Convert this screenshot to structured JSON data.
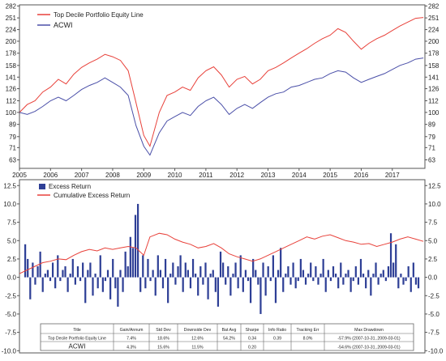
{
  "chart_data": [
    {
      "type": "line",
      "scale": "log",
      "ylim": [
        58,
        285
      ],
      "xlim": [
        2005.0,
        2018.05
      ],
      "grid": false,
      "legend_position": "top-left",
      "y_ticks": [
        "63",
        "71",
        "79",
        "89",
        "100",
        "112",
        "126",
        "141",
        "158",
        "178",
        "200",
        "224",
        "251",
        "282"
      ],
      "x_ticks": [
        "2005",
        "2006",
        "2007",
        "2008",
        "2009",
        "2010",
        "2011",
        "2012",
        "2013",
        "2014",
        "2015",
        "2016",
        "2017"
      ],
      "series": [
        {
          "name": "Top Decile Portfolio Equity Line",
          "color": "#e8413a",
          "points": [
            [
              2005.0,
              100
            ],
            [
              2005.25,
              108
            ],
            [
              2005.5,
              112
            ],
            [
              2005.75,
              122
            ],
            [
              2006.0,
              128
            ],
            [
              2006.25,
              138
            ],
            [
              2006.5,
              132
            ],
            [
              2006.75,
              145
            ],
            [
              2007.0,
              155
            ],
            [
              2007.25,
              162
            ],
            [
              2007.5,
              168
            ],
            [
              2007.75,
              176
            ],
            [
              2008.0,
              172
            ],
            [
              2008.25,
              166
            ],
            [
              2008.5,
              150
            ],
            [
              2008.75,
              110
            ],
            [
              2009.0,
              80
            ],
            [
              2009.2,
              72
            ],
            [
              2009.5,
              100
            ],
            [
              2009.75,
              118
            ],
            [
              2010.0,
              122
            ],
            [
              2010.25,
              128
            ],
            [
              2010.5,
              124
            ],
            [
              2010.75,
              140
            ],
            [
              2011.0,
              150
            ],
            [
              2011.25,
              156
            ],
            [
              2011.5,
              144
            ],
            [
              2011.75,
              128
            ],
            [
              2012.0,
              138
            ],
            [
              2012.25,
              142
            ],
            [
              2012.5,
              132
            ],
            [
              2012.75,
              138
            ],
            [
              2013.0,
              150
            ],
            [
              2013.25,
              155
            ],
            [
              2013.5,
              162
            ],
            [
              2013.75,
              170
            ],
            [
              2014.0,
              178
            ],
            [
              2014.25,
              186
            ],
            [
              2014.5,
              196
            ],
            [
              2014.75,
              205
            ],
            [
              2015.0,
              212
            ],
            [
              2015.25,
              226
            ],
            [
              2015.5,
              218
            ],
            [
              2015.75,
              200
            ],
            [
              2016.0,
              185
            ],
            [
              2016.25,
              196
            ],
            [
              2016.5,
              205
            ],
            [
              2016.75,
              212
            ],
            [
              2017.0,
              222
            ],
            [
              2017.25,
              232
            ],
            [
              2017.5,
              241
            ],
            [
              2017.75,
              250
            ],
            [
              2018.0,
              252
            ]
          ]
        },
        {
          "name": "ACWI",
          "color": "#4a4fa8",
          "points": [
            [
              2005.0,
              100
            ],
            [
              2005.25,
              98
            ],
            [
              2005.5,
              101
            ],
            [
              2005.75,
              106
            ],
            [
              2006.0,
              112
            ],
            [
              2006.25,
              116
            ],
            [
              2006.5,
              112
            ],
            [
              2006.75,
              118
            ],
            [
              2007.0,
              125
            ],
            [
              2007.25,
              130
            ],
            [
              2007.5,
              134
            ],
            [
              2007.75,
              140
            ],
            [
              2008.0,
              134
            ],
            [
              2008.25,
              128
            ],
            [
              2008.5,
              118
            ],
            [
              2008.75,
              88
            ],
            [
              2009.0,
              72
            ],
            [
              2009.2,
              66
            ],
            [
              2009.5,
              82
            ],
            [
              2009.75,
              92
            ],
            [
              2010.0,
              96
            ],
            [
              2010.25,
              100
            ],
            [
              2010.5,
              97
            ],
            [
              2010.75,
              106
            ],
            [
              2011.0,
              112
            ],
            [
              2011.25,
              116
            ],
            [
              2011.5,
              108
            ],
            [
              2011.75,
              98
            ],
            [
              2012.0,
              104
            ],
            [
              2012.25,
              108
            ],
            [
              2012.5,
              104
            ],
            [
              2012.75,
              110
            ],
            [
              2013.0,
              116
            ],
            [
              2013.25,
              120
            ],
            [
              2013.5,
              122
            ],
            [
              2013.75,
              128
            ],
            [
              2014.0,
              130
            ],
            [
              2014.25,
              134
            ],
            [
              2014.5,
              138
            ],
            [
              2014.75,
              140
            ],
            [
              2015.0,
              146
            ],
            [
              2015.25,
              150
            ],
            [
              2015.5,
              148
            ],
            [
              2015.75,
              140
            ],
            [
              2016.0,
              134
            ],
            [
              2016.25,
              138
            ],
            [
              2016.5,
              142
            ],
            [
              2016.75,
              146
            ],
            [
              2017.0,
              152
            ],
            [
              2017.25,
              158
            ],
            [
              2017.5,
              162
            ],
            [
              2017.75,
              168
            ],
            [
              2018.0,
              170
            ]
          ]
        }
      ]
    },
    {
      "type": "bar",
      "ylim": [
        -10.3,
        13.3
      ],
      "xlim": [
        2005.0,
        2018.05
      ],
      "grid": false,
      "legend_position": "top-left",
      "y_ticks": [
        "12.5",
        "10.0",
        "7.5",
        "5.0",
        "2.5",
        "0.0",
        "-2.5",
        "-5.0",
        "-7.5",
        "-10.0"
      ],
      "series": [
        {
          "name": "Excess Return",
          "color": "#2e3f96",
          "values": [
            4.5,
            2.5,
            -3.0,
            2.0,
            -1.0,
            1.5,
            3.5,
            -2.0,
            0.5,
            1.0,
            -0.5,
            2.0,
            -1.5,
            3.0,
            -0.5,
            1.0,
            1.5,
            -2.0,
            0.5,
            2.5,
            -1.0,
            1.5,
            -0.5,
            2.0,
            -3.5,
            1.0,
            2.0,
            -2.5,
            0.5,
            -1.5,
            3.0,
            -2.0,
            -0.5,
            1.0,
            -3.0,
            2.5,
            -1.5,
            -4.0,
            1.0,
            -2.0,
            3.5,
            1.5,
            5.5,
            4.0,
            8.5,
            10.0,
            -2.0,
            3.0,
            -1.5,
            2.5,
            -0.5,
            1.0,
            -2.5,
            3.0,
            1.0,
            -1.5,
            2.5,
            -3.5,
            0.5,
            2.0,
            -1.0,
            1.5,
            3.0,
            -2.0,
            2.0,
            1.0,
            -1.5,
            2.5,
            0.5,
            -2.5,
            1.5,
            -1.0,
            2.0,
            -3.0,
            0.5,
            1.0,
            -2.0,
            -4.0,
            3.5,
            2.0,
            -1.0,
            1.5,
            -2.5,
            0.5,
            2.0,
            -1.5,
            3.0,
            -2.0,
            1.0,
            -0.5,
            -3.5,
            2.5,
            1.0,
            -1.0,
            -5.0,
            2.0,
            -2.5,
            1.5,
            -0.5,
            3.0,
            -3.5,
            1.0,
            4.0,
            -2.0,
            0.5,
            1.5,
            -1.0,
            2.0,
            -1.5,
            -0.5,
            2.5,
            1.0,
            -1.0,
            0.5,
            2.0,
            -0.5,
            1.5,
            -1.0,
            0.5,
            2.5,
            -2.0,
            1.0,
            -0.5,
            1.5,
            0.5,
            -1.5,
            2.0,
            -1.0,
            0.5,
            1.0,
            -2.0,
            -0.5,
            1.5,
            -1.0,
            2.5,
            0.5,
            -1.5,
            1.0,
            -2.5,
            0.5,
            2.0,
            -1.0,
            0.5,
            1.0,
            -0.5,
            1.5,
            6.0,
            2.0,
            4.5,
            -1.5,
            0.5,
            -1.0,
            -0.5,
            1.5,
            -2.0,
            2.0,
            -1.0,
            -1.5
          ]
        },
        {
          "name": "Cumulative Excess Return",
          "type": "line",
          "color": "#e8413a",
          "points": [
            [
              2005.0,
              0.5
            ],
            [
              2005.25,
              1.0
            ],
            [
              2005.5,
              1.5
            ],
            [
              2005.75,
              2.0
            ],
            [
              2006.0,
              2.2
            ],
            [
              2006.25,
              2.5
            ],
            [
              2006.5,
              2.4
            ],
            [
              2006.75,
              3.0
            ],
            [
              2007.0,
              3.5
            ],
            [
              2007.25,
              3.8
            ],
            [
              2007.5,
              3.6
            ],
            [
              2007.75,
              4.0
            ],
            [
              2008.0,
              3.8
            ],
            [
              2008.25,
              4.0
            ],
            [
              2008.5,
              4.2
            ],
            [
              2008.75,
              4.0
            ],
            [
              2009.0,
              3.0
            ],
            [
              2009.2,
              5.5
            ],
            [
              2009.5,
              6.0
            ],
            [
              2009.75,
              5.8
            ],
            [
              2010.0,
              5.2
            ],
            [
              2010.25,
              4.8
            ],
            [
              2010.5,
              4.5
            ],
            [
              2010.75,
              4.0
            ],
            [
              2011.0,
              4.2
            ],
            [
              2011.25,
              4.6
            ],
            [
              2011.5,
              4.0
            ],
            [
              2011.75,
              3.2
            ],
            [
              2012.0,
              2.8
            ],
            [
              2012.25,
              2.5
            ],
            [
              2012.5,
              2.2
            ],
            [
              2012.75,
              2.5
            ],
            [
              2013.0,
              3.0
            ],
            [
              2013.25,
              3.5
            ],
            [
              2013.5,
              4.0
            ],
            [
              2013.75,
              4.5
            ],
            [
              2014.0,
              5.0
            ],
            [
              2014.25,
              5.5
            ],
            [
              2014.5,
              5.2
            ],
            [
              2014.75,
              5.6
            ],
            [
              2015.0,
              5.8
            ],
            [
              2015.25,
              5.4
            ],
            [
              2015.5,
              5.0
            ],
            [
              2015.75,
              4.8
            ],
            [
              2016.0,
              4.5
            ],
            [
              2016.25,
              4.6
            ],
            [
              2016.5,
              4.2
            ],
            [
              2016.75,
              4.5
            ],
            [
              2017.0,
              4.8
            ],
            [
              2017.25,
              5.2
            ],
            [
              2017.5,
              5.5
            ],
            [
              2017.75,
              5.2
            ],
            [
              2018.0,
              4.9
            ]
          ]
        }
      ]
    }
  ],
  "stats_table": {
    "headers": [
      "Title",
      "Gain/Annum",
      "Std Dev",
      "Downside Dev",
      "Bat Avg",
      "Sharpe",
      "Info Ratio",
      "Tracking Err",
      "Max Drawdown"
    ],
    "rows": [
      [
        "Top Decile Portfolio Equity Line",
        "7.4%",
        "18.6%",
        "12.6%",
        "54.2%",
        "0.34",
        "0.39",
        "8.0%",
        "-57.9% (2007-10-31..2009-03-01)"
      ],
      [
        "ACWI",
        "4.3%",
        "15.6%",
        "11.5%",
        "",
        "0.20",
        "",
        "",
        "-54.6% (2007-10-31..2009-03-01)"
      ]
    ]
  }
}
